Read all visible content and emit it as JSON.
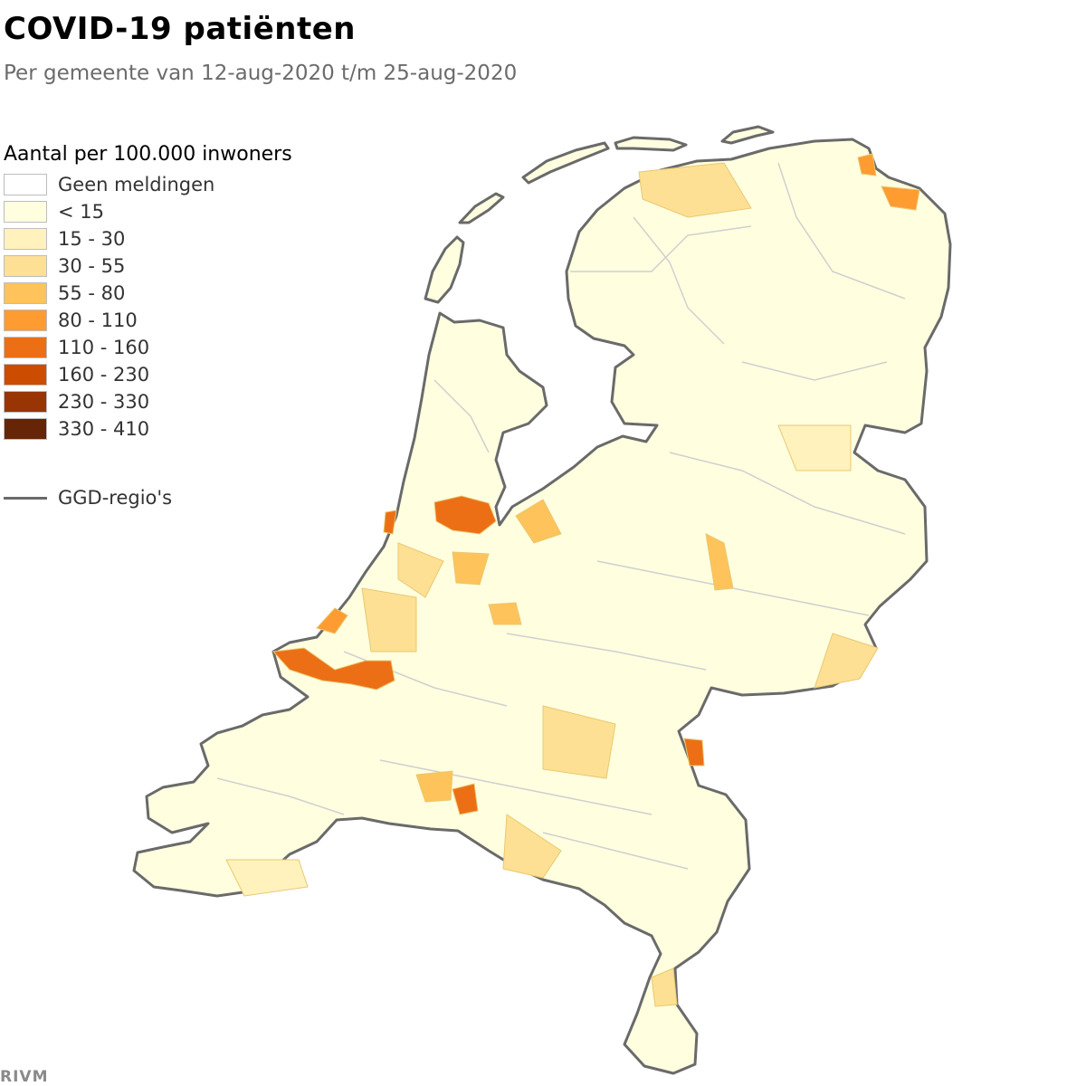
{
  "title": "COVID-19 patiënten",
  "subtitle": "Per gemeente van 12-aug-2020 t/m 25-aug-2020",
  "legend": {
    "title": "Aantal per 100.000 inwoners",
    "items": [
      {
        "label": "Geen meldingen",
        "color": "#ffffff"
      },
      {
        "label": "< 15",
        "color": "#ffffe0"
      },
      {
        "label": "15 - 30",
        "color": "#fff2bd"
      },
      {
        "label": "30 - 55",
        "color": "#fee094"
      },
      {
        "label": "55 - 80",
        "color": "#fec35a"
      },
      {
        "label": "80 - 110",
        "color": "#fe9b31"
      },
      {
        "label": "110 - 160",
        "color": "#ec6f16"
      },
      {
        "label": "160 - 230",
        "color": "#cc4c02"
      },
      {
        "label": "230 - 330",
        "color": "#993404"
      },
      {
        "label": "330 - 410",
        "color": "#662506"
      }
    ],
    "region_label": "GGD-regio's",
    "region_color": "#6a6a6a"
  },
  "credit": "RIVM"
}
